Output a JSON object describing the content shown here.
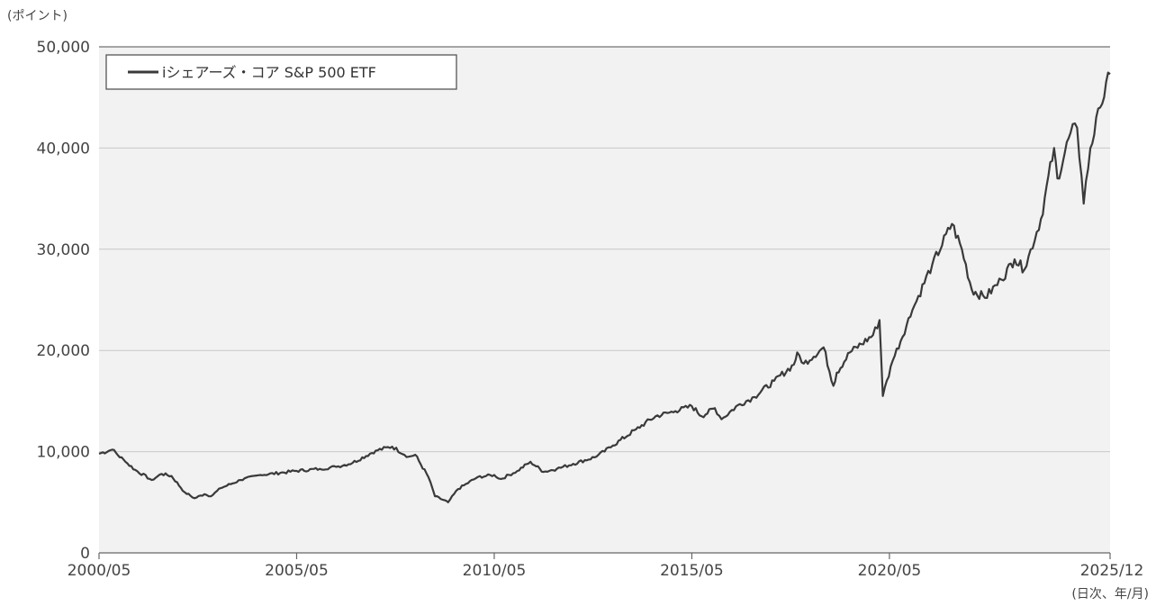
{
  "chart_data": {
    "type": "line",
    "title": "",
    "ylabel": "(ポイント)",
    "xlabel": "(日次、年/月)",
    "ylim": [
      0,
      50000
    ],
    "y_ticks": [
      "0",
      "10,000",
      "20,000",
      "30,000",
      "40,000",
      "50,000"
    ],
    "x_ticks": [
      "2000/05",
      "2005/05",
      "2010/05",
      "2015/05",
      "2020/05",
      "2025/12"
    ],
    "grid": true,
    "legend_position": "top-left",
    "colors": {
      "line": "#3a3a3a",
      "plot_bg": "#f2f2f2",
      "grid": "#c8c8c8"
    },
    "series": [
      {
        "name": "iシェアーズ・コア S&P 500 ETF",
        "x": [
          "2000/05",
          "2000/09",
          "2001/01",
          "2001/04",
          "2001/09",
          "2001/12",
          "2002/03",
          "2002/07",
          "2002/10",
          "2003/01",
          "2003/03",
          "2003/06",
          "2003/12",
          "2004/06",
          "2004/12",
          "2005/05",
          "2005/12",
          "2006/05",
          "2006/10",
          "2007/05",
          "2007/10",
          "2008/03",
          "2008/05",
          "2008/09",
          "2008/11",
          "2009/03",
          "2009/06",
          "2009/12",
          "2010/05",
          "2010/07",
          "2010/12",
          "2011/04",
          "2011/08",
          "2011/12",
          "2012/05",
          "2012/12",
          "2013/05",
          "2013/12",
          "2014/06",
          "2014/12",
          "2015/05",
          "2015/08",
          "2015/12",
          "2016/02",
          "2016/07",
          "2016/12",
          "2017/06",
          "2017/12",
          "2018/01",
          "2018/03",
          "2018/09",
          "2018/12",
          "2019/01",
          "2019/05",
          "2019/12",
          "2020/02",
          "2020/03",
          "2020/06",
          "2020/12",
          "2021/06",
          "2021/12",
          "2022/03",
          "2022/06",
          "2022/10",
          "2023/03",
          "2023/07",
          "2023/10",
          "2024/03",
          "2024/07",
          "2024/08",
          "2024/12",
          "2025/02",
          "2025/04",
          "2025/06",
          "2025/09",
          "2025/12"
        ],
        "y": [
          9800,
          10200,
          9000,
          8200,
          7200,
          7800,
          7600,
          6000,
          5400,
          5800,
          5600,
          6400,
          7200,
          7700,
          7900,
          8100,
          8300,
          8500,
          8900,
          10100,
          10500,
          9500,
          9700,
          7500,
          5600,
          5000,
          6300,
          7500,
          7700,
          7300,
          8100,
          9000,
          8000,
          8300,
          8800,
          9500,
          10600,
          12200,
          13500,
          14000,
          14500,
          13500,
          14300,
          13200,
          14600,
          15400,
          17000,
          18600,
          19800,
          18700,
          20300,
          16500,
          17800,
          19800,
          21500,
          23000,
          15500,
          19000,
          24000,
          28500,
          32500,
          30000,
          26000,
          25200,
          27000,
          29000,
          28000,
          33000,
          40000,
          37000,
          41500,
          42000,
          34500,
          40000,
          44000,
          47300
        ]
      }
    ]
  }
}
